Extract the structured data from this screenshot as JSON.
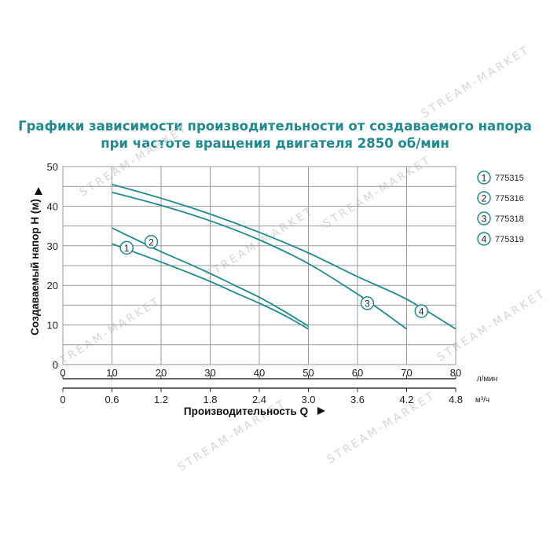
{
  "title_lines": [
    "Графики зависимости производительности от создаваемого напора",
    "при частоте вращения двигателя 2850 об/мин"
  ],
  "watermark": "STREAM-MARKET",
  "chart_data": {
    "type": "line",
    "ylabel": "Создаваемый напор H (м)",
    "xlabel": "Производительность Q",
    "x_unit_primary": "л/мин",
    "x_unit_secondary": "м³/ч",
    "xlim": [
      0,
      80
    ],
    "ylim": [
      0,
      50
    ],
    "x_ticks": [
      "0",
      "10",
      "20",
      "30",
      "40",
      "50",
      "60",
      "70",
      "80"
    ],
    "x2_ticks": [
      "0",
      "0.6",
      "1.2",
      "1.8",
      "2.4",
      "3.0",
      "3.6",
      "4.2",
      "4.8"
    ],
    "y_ticks": [
      "0",
      "10",
      "20",
      "30",
      "40",
      "50"
    ],
    "grid": true,
    "legend_position": "right",
    "series": [
      {
        "name": "775315",
        "marker": "1",
        "color": "#1f8a8f",
        "x": [
          10,
          15,
          20,
          25,
          30,
          35,
          40,
          45,
          50
        ],
        "y": [
          30.5,
          28.2,
          25.9,
          23.5,
          21.0,
          18.2,
          15.5,
          12.5,
          9.0
        ],
        "marker_at": [
          13,
          29.5
        ]
      },
      {
        "name": "775316",
        "marker": "2",
        "color": "#1f8a8f",
        "x": [
          10,
          15,
          20,
          25,
          30,
          35,
          40,
          45,
          50
        ],
        "y": [
          34.5,
          31.5,
          28.5,
          25.8,
          23.0,
          20.0,
          17.0,
          13.5,
          9.7
        ],
        "marker_at": [
          18,
          31
        ]
      },
      {
        "name": "775318",
        "marker": "3",
        "color": "#1f8a8f",
        "x": [
          10,
          20,
          30,
          40,
          50,
          60,
          65,
          70
        ],
        "y": [
          43.5,
          40.2,
          36.3,
          31.5,
          25.5,
          17.8,
          13.5,
          9.0
        ],
        "marker_at": [
          62,
          15.5
        ]
      },
      {
        "name": "775319",
        "marker": "4",
        "color": "#1f8a8f",
        "x": [
          10,
          20,
          30,
          40,
          50,
          60,
          70,
          80
        ],
        "y": [
          45.5,
          42.0,
          38.0,
          33.4,
          28.2,
          22.2,
          16.5,
          9.0
        ],
        "marker_at": [
          73,
          13.5
        ]
      }
    ]
  }
}
